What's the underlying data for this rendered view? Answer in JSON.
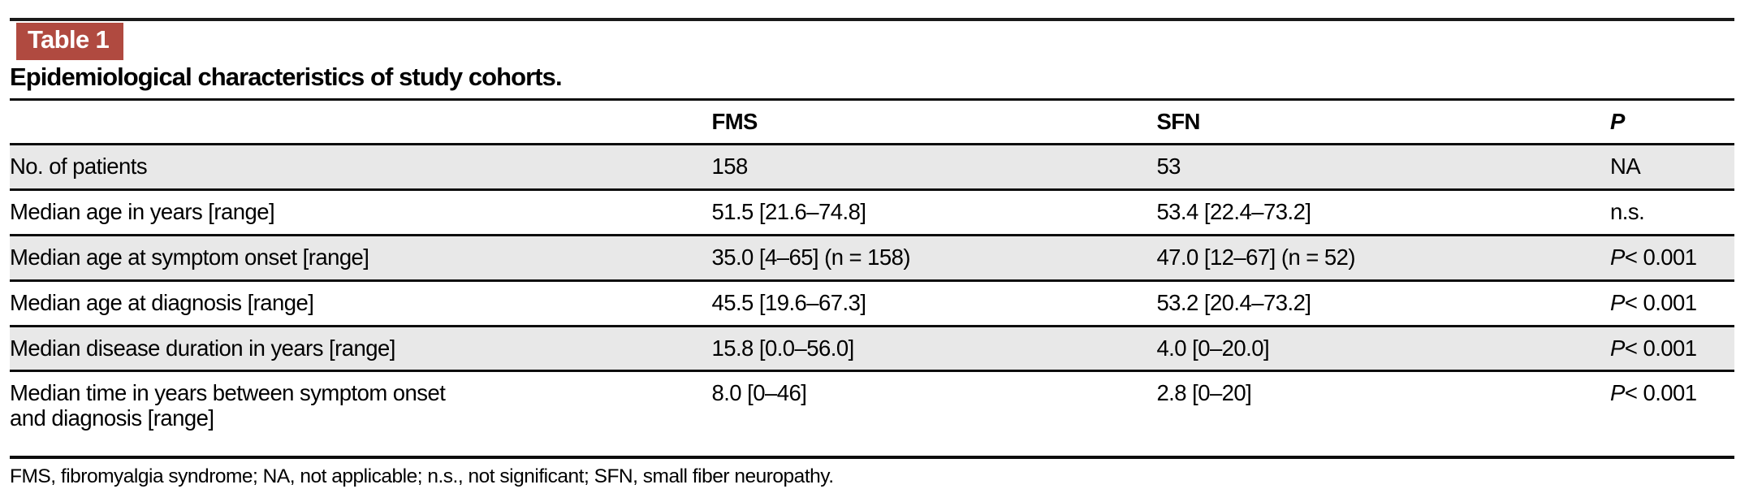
{
  "badge": {
    "label": "Table 1",
    "color": "#b04a40"
  },
  "title": "Epidemiological characteristics of study cohorts.",
  "table": {
    "header": {
      "label": "",
      "fms": "FMS",
      "sfn": "SFN",
      "p": "P"
    },
    "rows": [
      {
        "label": "No. of patients",
        "fms": "158",
        "sfn": "53",
        "p_prefix": "",
        "p_value": "NA"
      },
      {
        "label": "Median age in years [range]",
        "fms": "51.5 [21.6–74.8]",
        "sfn": "53.4 [22.4–73.2]",
        "p_prefix": "",
        "p_value": "n.s."
      },
      {
        "label": "Median age at symptom onset [range]",
        "fms": "35.0 [4–65] (n = 158)",
        "sfn": "47.0 [12–67] (n = 52)",
        "p_prefix": "P",
        "p_value": "< 0.001"
      },
      {
        "label": "Median age at diagnosis [range]",
        "fms": "45.5 [19.6–67.3]",
        "sfn": "53.2 [20.4–73.2]",
        "p_prefix": "P",
        "p_value": "< 0.001"
      },
      {
        "label": "Median disease duration in years [range]",
        "fms": "15.8 [0.0–56.0]",
        "sfn": "4.0 [0–20.0]",
        "p_prefix": "P",
        "p_value": "< 0.001"
      },
      {
        "label": "Median time in years between symptom onset\nand diagnosis [range]",
        "fms": "8.0 [0–46]",
        "sfn": "2.8 [0–20]",
        "p_prefix": "P",
        "p_value": "< 0.001"
      }
    ]
  },
  "footnote": "FMS, fibromyalgia syndrome; NA, not applicable; n.s., not significant; SFN, small fiber neuropathy."
}
